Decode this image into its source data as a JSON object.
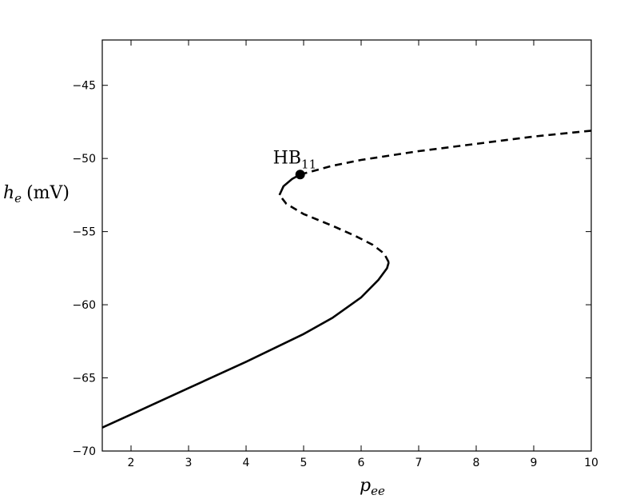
{
  "chart_data": {
    "type": "line",
    "xlabel": {
      "symbol": "p",
      "subscript": "ee"
    },
    "ylabel": {
      "symbol": "h",
      "subscript": "e",
      "unit": "(mV)"
    },
    "xlim": [
      1.5,
      10
    ],
    "ylim": [
      -70,
      -41.9
    ],
    "xticks": [
      2,
      3,
      4,
      5,
      6,
      7,
      8,
      9,
      10
    ],
    "yticks": [
      {
        "value": -70,
        "label": "−70"
      },
      {
        "value": -65,
        "label": "−65"
      },
      {
        "value": -60,
        "label": "−60"
      },
      {
        "value": -55,
        "label": "−55"
      },
      {
        "value": -50,
        "label": "−50"
      },
      {
        "value": -45,
        "label": "−45"
      }
    ],
    "series": [
      {
        "color": "#000000",
        "linestyle": "solid",
        "x": [
          1.5,
          2,
          3,
          4,
          5,
          5.5,
          6,
          6.3,
          6.45,
          6.48
        ],
        "values": [
          -68.4,
          -67.5,
          -65.7,
          -63.9,
          -62.0,
          -60.9,
          -59.5,
          -58.3,
          -57.5,
          -57.1
        ]
      },
      {
        "color": "#000000",
        "linestyle": "dashed",
        "x": [
          6.48,
          6.4,
          6.2,
          5.9,
          5.5,
          5.0,
          4.7,
          4.58
        ],
        "values": [
          -57.1,
          -56.5,
          -55.9,
          -55.3,
          -54.6,
          -53.8,
          -53.1,
          -52.5
        ]
      },
      {
        "color": "#000000",
        "linestyle": "solid",
        "x": [
          4.58,
          4.65,
          4.8,
          4.94
        ],
        "values": [
          -52.5,
          -51.9,
          -51.4,
          -51.1
        ]
      },
      {
        "color": "#000000",
        "linestyle": "dashed",
        "x": [
          4.94,
          5.5,
          6,
          7,
          8,
          9,
          10
        ],
        "values": [
          -51.1,
          -50.5,
          -50.1,
          -49.5,
          -49.0,
          -48.5,
          -48.1
        ]
      }
    ],
    "annotations": [
      {
        "text": "HB",
        "subscript": "11",
        "x": 4.94,
        "y": -51.1
      }
    ]
  }
}
